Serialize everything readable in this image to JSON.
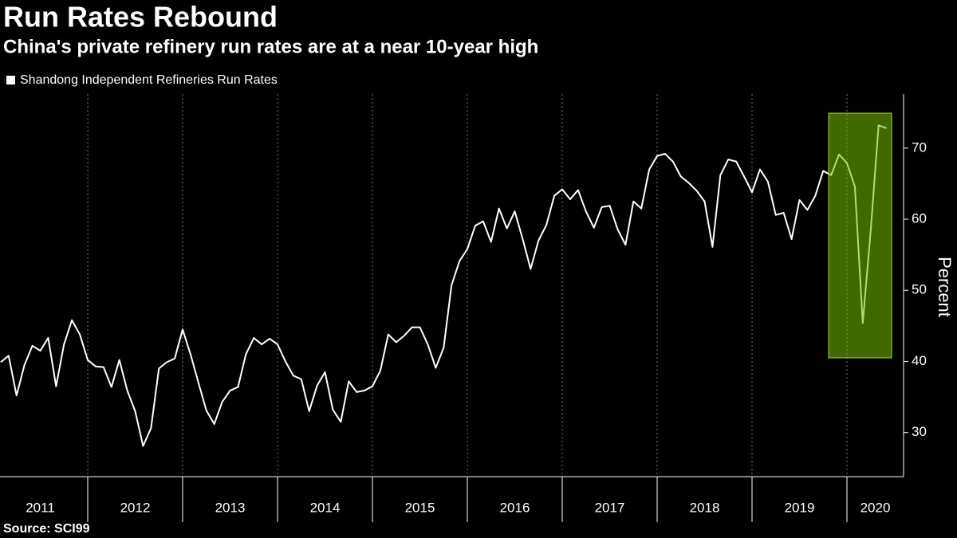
{
  "chart_data": {
    "type": "line",
    "title": "Run Rates Rebound",
    "subtitle": "China's private refinery run rates are at a near 10-year high",
    "source": "Source: SCI99",
    "y_axis_label": "Percent",
    "years": [
      "2011",
      "2012",
      "2013",
      "2014",
      "2015",
      "2016",
      "2017",
      "2018",
      "2019",
      "2020"
    ],
    "series": [
      {
        "name": "Shandong Independent Refineries Run Rates",
        "color": "#ffffff",
        "values": [
          39.9,
          40.8,
          35.2,
          39.5,
          42.2,
          41.5,
          43.3,
          36.5,
          42.4,
          45.8,
          43.8,
          40.2,
          39.3,
          39.2,
          36.4,
          40.2,
          35.9,
          33.0,
          28.1,
          30.6,
          39.0,
          39.9,
          40.4,
          44.5,
          41.0,
          37.0,
          33.1,
          31.2,
          34.3,
          35.9,
          36.4,
          41.0,
          43.3,
          42.4,
          43.2,
          42.4,
          40.0,
          38.0,
          37.5,
          33.0,
          36.6,
          38.5,
          33.2,
          31.5,
          37.2,
          35.7,
          35.9,
          36.5,
          38.7,
          43.8,
          42.7,
          43.6,
          44.8,
          44.8,
          42.4,
          39.1,
          41.9,
          50.7,
          54.1,
          55.8,
          59.1,
          59.7,
          56.8,
          61.5,
          58.7,
          61.1,
          57.2,
          53.0,
          57.0,
          59.2,
          63.3,
          64.2,
          62.8,
          64.1,
          61.1,
          58.8,
          61.7,
          61.9,
          58.6,
          56.4,
          62.5,
          61.5,
          67.0,
          68.9,
          69.2,
          68.1,
          66.0,
          65.1,
          64.0,
          62.5,
          56.1,
          66.2,
          68.4,
          68.1,
          66.0,
          63.8,
          67.0,
          65.3,
          60.6,
          60.9,
          57.2,
          62.7,
          61.3,
          63.3,
          66.8,
          66.2,
          69.1,
          67.9,
          64.6,
          45.4,
          58.3,
          73.2,
          72.8
        ]
      }
    ],
    "ylim": [
      23.8,
      77.6
    ],
    "yticks": [
      30,
      40,
      50,
      60,
      70
    ],
    "y_axis_side": "right",
    "grid": false
  }
}
